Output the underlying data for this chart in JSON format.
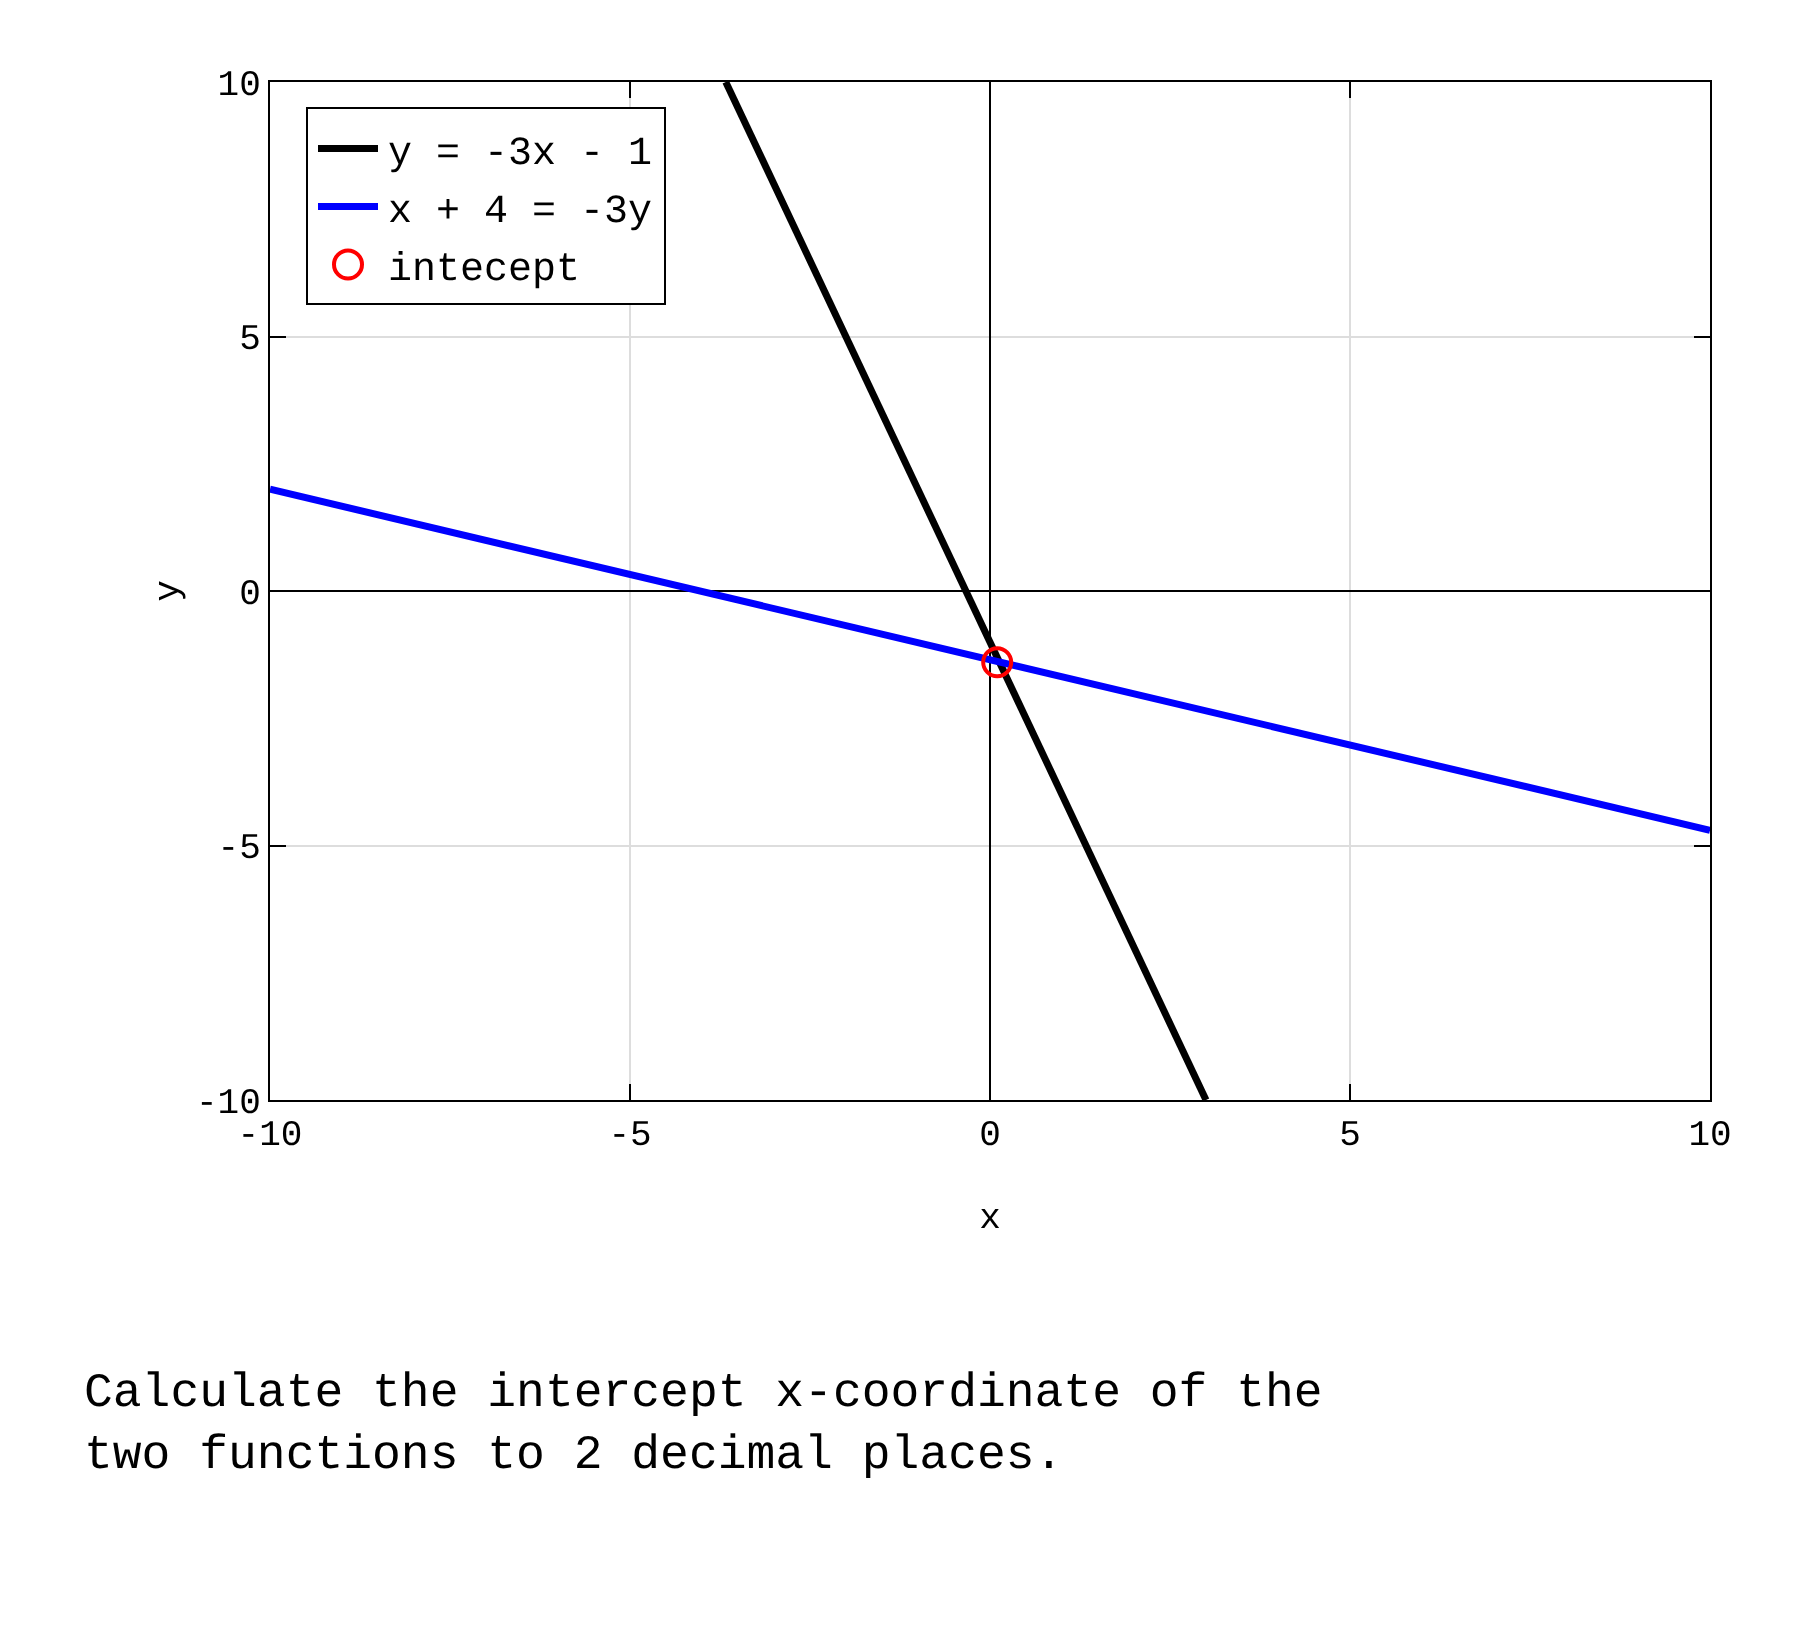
{
  "chart_data": {
    "type": "line",
    "xlabel": "x",
    "ylabel": "y",
    "xlim": [
      -10,
      10
    ],
    "ylim": [
      -10,
      10
    ],
    "xticks": [
      -10,
      -5,
      0,
      5,
      10
    ],
    "yticks": [
      -10,
      -5,
      0,
      5,
      10
    ],
    "grid": true,
    "legend": "top left",
    "series": [
      {
        "name": "y = -3x - 1",
        "color": "#000000",
        "x": [
          -3.67,
          3
        ],
        "values": [
          10,
          -10
        ]
      },
      {
        "name": "x + 4 = -3y",
        "color": "#0000ff",
        "x": [
          -10,
          10
        ],
        "values": [
          2,
          -4.7
        ]
      },
      {
        "type": "scatter",
        "name": "intecept",
        "color": "#ff0000",
        "marker": "circle",
        "x": [
          0.1
        ],
        "values": [
          -1.4
        ]
      }
    ],
    "annotations": [
      "Calculate the intercept x-coordinate of the\ntwo functions to 2 decimal places."
    ]
  }
}
